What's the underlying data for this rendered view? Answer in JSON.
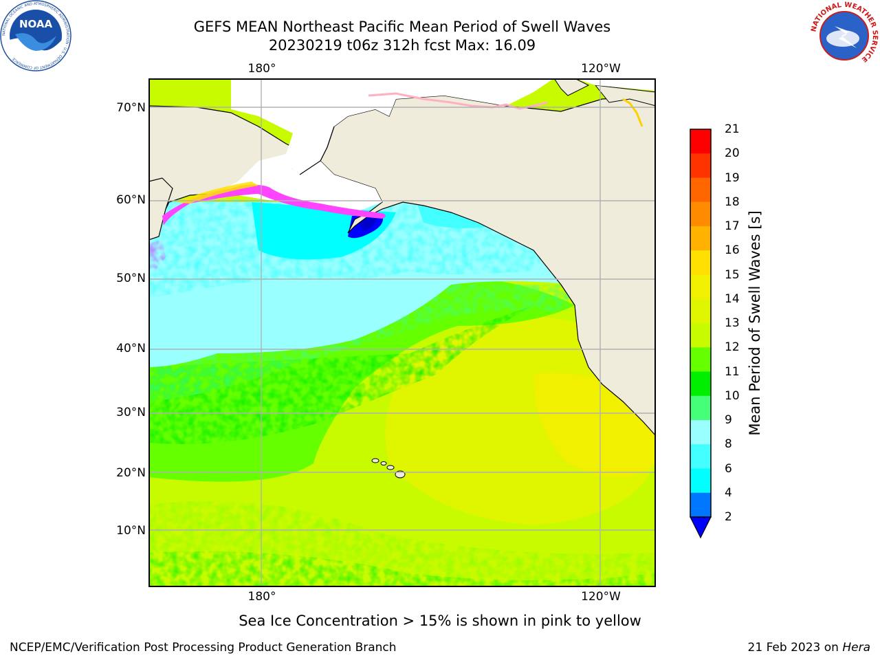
{
  "header": {
    "title_line1": "GEFS MEAN Northeast Pacific Mean Period of Swell Waves",
    "title_line2": "20230219 t06z 312h fcst   Max: 16.09"
  },
  "logos": {
    "left": {
      "text": "NOAA",
      "ring_text": "NATIONAL OCEANIC AND ATMOSPHERIC ADMINISTRATION · U.S. DEPARTMENT OF COMMERCE"
    },
    "right": {
      "ring_text": "NATIONAL WEATHER SERVICE"
    }
  },
  "map": {
    "lon_labels_top": [
      "180°",
      "120°W"
    ],
    "lon_labels_bottom": [
      "180°",
      "120°W"
    ],
    "lat_labels": [
      "70°N",
      "60°N",
      "50°N",
      "40°N",
      "30°N",
      "20°N",
      "10°N"
    ],
    "colors": {
      "land": "#efecdc",
      "ice_low": "#ff44ff",
      "ice_high": "#ffe000",
      "grid": "#b0b0b0"
    }
  },
  "colorbar": {
    "label": "Mean Period of Swell Waves [s]",
    "levels": [
      "21",
      "20",
      "19",
      "18",
      "17",
      "16",
      "15",
      "14",
      "13",
      "12",
      "11",
      "10",
      "9",
      "8",
      "6",
      "4",
      "2"
    ],
    "colors": [
      "#ff0000",
      "#ff3300",
      "#ff6600",
      "#ff8c00",
      "#ffb300",
      "#ffe000",
      "#f0f000",
      "#e0f500",
      "#c8fa00",
      "#66ff00",
      "#00ee00",
      "#44ff77",
      "#99ffff",
      "#44ffff",
      "#00ffff",
      "#0077ff"
    ],
    "under_color": "#0000ff"
  },
  "footer": {
    "note": "Sea Ice Concentration > 15% is shown in pink to yellow",
    "credit": "NCEP/EMC/Verification Post Processing Product Generation Branch",
    "date_prefix": "21 Feb 2023 on ",
    "date_machine": "Hera"
  }
}
